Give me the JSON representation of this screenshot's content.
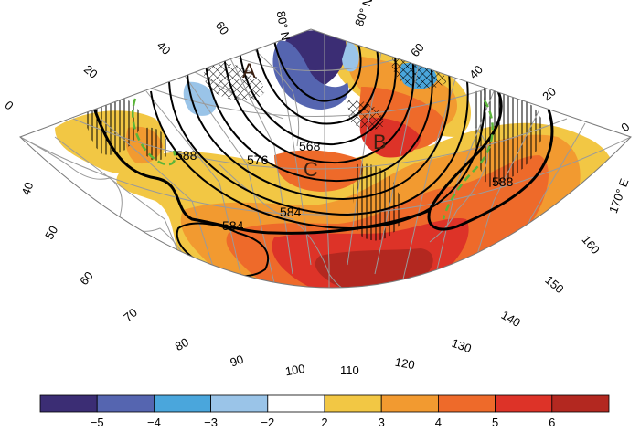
{
  "map": {
    "north_labels": [
      "80° N",
      "80° N"
    ],
    "lat_labels_left": [
      "0",
      "20",
      "40",
      "60"
    ],
    "lat_labels_right": [
      "60",
      "40",
      "20",
      "0"
    ],
    "lon_labels": [
      "40",
      "50",
      "60",
      "70",
      "80",
      "90",
      "100",
      "110",
      "120",
      "130",
      "140",
      "150",
      "160",
      "170° E"
    ],
    "contour_labels": [
      "588",
      "576",
      "568",
      "584",
      "584",
      "588"
    ],
    "region_labels": [
      "A",
      "B",
      "C"
    ]
  },
  "colorbar": {
    "tick_labels": [
      "−5",
      "−4",
      "−3",
      "−2",
      "2",
      "3",
      "4",
      "5",
      "6"
    ],
    "colors": [
      "#3b2d74",
      "#5565b0",
      "#4aa6dc",
      "#9ac4e8",
      "#ffffff",
      "#f2c744",
      "#f29a30",
      "#ee6a2a",
      "#dd3328",
      "#b32820"
    ]
  }
}
